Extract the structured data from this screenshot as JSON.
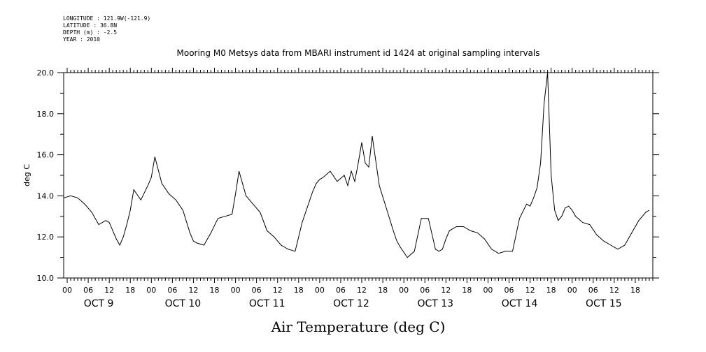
{
  "header": {
    "longitude": "LONGITUDE : 121.9W(-121.9)",
    "latitude": "LATITUDE : 36.8N",
    "depth": "DEPTH (m) : -2.5",
    "year": "YEAR : 2010"
  },
  "chart_data": {
    "type": "line",
    "title": "Mooring M0 Metsys data from MBARI instrument id 1424 at original sampling intervals",
    "xlabel": "Air Temperature (deg C)",
    "ylabel": "deg C",
    "ylim": [
      10.0,
      20.0
    ],
    "yticks": [
      "10.0",
      "12.0",
      "14.0",
      "16.0",
      "18.0",
      "20.0"
    ],
    "xlim_hours": [
      -1,
      167
    ],
    "hour_ticks": [
      "00",
      "06",
      "12",
      "18"
    ],
    "day_labels": [
      "OCT  9",
      "OCT 10",
      "OCT 11",
      "OCT 12",
      "OCT 13",
      "OCT 14",
      "OCT 15"
    ],
    "x_hours": [
      -1,
      1,
      3,
      5,
      7,
      9,
      11,
      12,
      13,
      14,
      15,
      16,
      17,
      18,
      19,
      21,
      23,
      24,
      25,
      27,
      29,
      31,
      33,
      35,
      36,
      37,
      39,
      41,
      43,
      45,
      47,
      48,
      49,
      51,
      53,
      55,
      57,
      59,
      61,
      63,
      65,
      67,
      69,
      70,
      71,
      72,
      73,
      75,
      77,
      79,
      80,
      81,
      82,
      83,
      84,
      85,
      86,
      87,
      89,
      91,
      93,
      94,
      95,
      97,
      99,
      101,
      103,
      105,
      106,
      107,
      108,
      109,
      111,
      113,
      115,
      117,
      119,
      121,
      123,
      125,
      127,
      129,
      131,
      132,
      133,
      134,
      135,
      136,
      137,
      138,
      139,
      140,
      141,
      142,
      143,
      144,
      145,
      147,
      149,
      151,
      153,
      155,
      157,
      159,
      161,
      163,
      165,
      166
    ],
    "values": [
      13.9,
      14.0,
      13.9,
      13.6,
      13.2,
      12.6,
      12.8,
      12.7,
      12.3,
      11.9,
      11.6,
      12.0,
      12.6,
      13.3,
      14.3,
      13.8,
      14.5,
      14.9,
      15.9,
      14.6,
      14.1,
      13.8,
      13.3,
      12.2,
      11.8,
      11.7,
      11.6,
      12.2,
      12.9,
      13.0,
      13.1,
      14.1,
      15.2,
      14.0,
      13.6,
      13.2,
      12.3,
      12.0,
      11.6,
      11.4,
      11.3,
      12.7,
      13.7,
      14.2,
      14.6,
      14.8,
      14.9,
      15.2,
      14.7,
      15.0,
      14.5,
      15.2,
      14.7,
      15.6,
      16.6,
      15.6,
      15.4,
      16.9,
      14.5,
      13.4,
      12.3,
      11.8,
      11.5,
      11.0,
      11.3,
      12.9,
      12.9,
      11.4,
      11.3,
      11.4,
      11.9,
      12.3,
      12.5,
      12.5,
      12.3,
      12.2,
      11.9,
      11.4,
      11.2,
      11.3,
      11.3,
      12.9,
      13.6,
      13.5,
      13.9,
      14.4,
      15.6,
      18.5,
      20.0,
      15.0,
      13.3,
      12.8,
      13.0,
      13.4,
      13.5,
      13.3,
      13.0,
      12.7,
      12.6,
      12.1,
      11.8,
      11.6,
      11.4,
      11.6,
      12.2,
      12.8,
      13.2,
      13.3
    ]
  }
}
